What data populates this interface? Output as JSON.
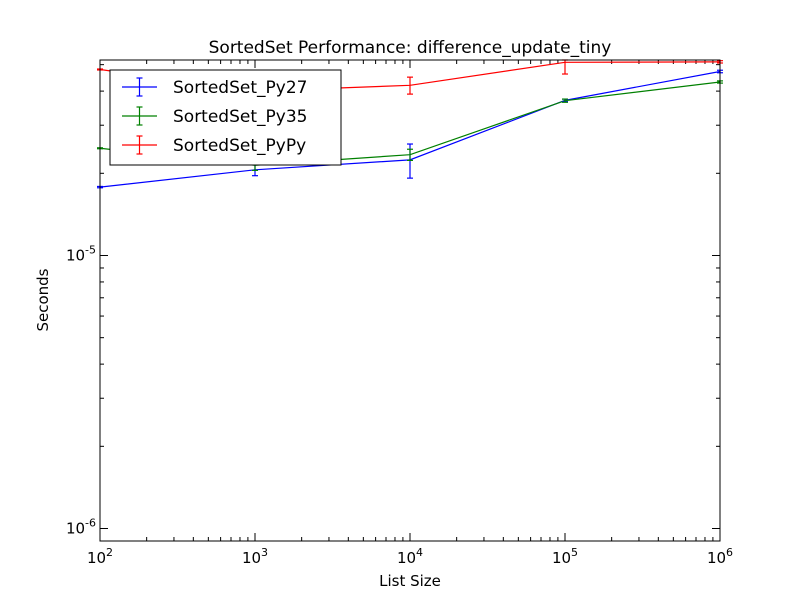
{
  "chart_data": {
    "type": "line",
    "title": "SortedSet Performance: difference_update_tiny",
    "xlabel": "List Size",
    "ylabel": "Seconds",
    "x_scale": "log",
    "y_scale": "log",
    "xlim": [
      100,
      1000000
    ],
    "ylim": [
      9e-07,
      5.2e-05
    ],
    "x_ticks": [
      {
        "value": 100,
        "base": "10",
        "exp": "2"
      },
      {
        "value": 1000,
        "base": "10",
        "exp": "3"
      },
      {
        "value": 10000,
        "base": "10",
        "exp": "4"
      },
      {
        "value": 100000,
        "base": "10",
        "exp": "5"
      },
      {
        "value": 1000000,
        "base": "10",
        "exp": "6"
      }
    ],
    "y_ticks": [
      {
        "value": 1e-06,
        "base": "10",
        "exp": "-6"
      },
      {
        "value": 1e-05,
        "base": "10",
        "exp": "-5"
      }
    ],
    "legend_position": "top-left",
    "grid": false,
    "series": [
      {
        "name": "SortedSet_Py27",
        "color": "#0000ff",
        "x": [
          100,
          1000,
          10000,
          100000,
          1000000
        ],
        "y": [
          1.78e-05,
          2.06e-05,
          2.24e-05,
          3.7e-05,
          4.72e-05
        ],
        "err": [
          1e-07,
          1e-06,
          3.2e-06,
          4e-07,
          5e-07
        ]
      },
      {
        "name": "SortedSet_Py35",
        "color": "#008000",
        "x": [
          100,
          1000,
          10000,
          100000,
          1000000
        ],
        "y": [
          2.47e-05,
          2.14e-05,
          2.34e-05,
          3.69e-05,
          4.32e-05
        ],
        "err": [
          1e-07,
          9e-07,
          1.1e-06,
          5e-07,
          4e-07
        ]
      },
      {
        "name": "SortedSet_PyPy",
        "color": "#ff0000",
        "x": [
          100,
          1000,
          10000,
          100000,
          1000000
        ],
        "y": [
          4.8e-05,
          4e-05,
          4.2e-05,
          5.1e-05,
          5.12e-05
        ],
        "err": [
          2e-07,
          1e-06,
          3e-06,
          4.8e-06,
          5e-07
        ]
      }
    ]
  }
}
